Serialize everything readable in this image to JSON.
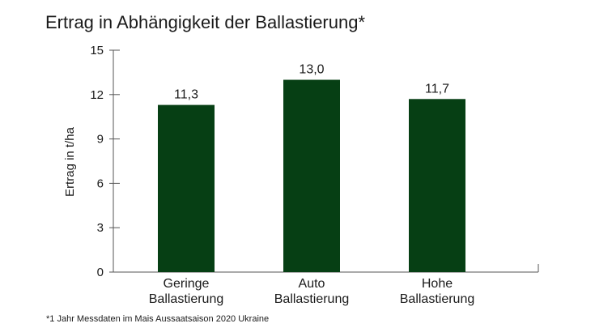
{
  "chart_data": {
    "type": "bar",
    "title": "Ertrag in Abhängigkeit der Ballastierung*",
    "ylabel": "Ertrag in t/ha",
    "xlabel": "",
    "ylim": [
      0,
      15
    ],
    "yticks": [
      "0",
      "3",
      "6",
      "9",
      "12",
      "15"
    ],
    "ytick_values": [
      0,
      3,
      6,
      9,
      12,
      15
    ],
    "grid": false,
    "categories": [
      [
        "Geringe",
        "Ballastierung"
      ],
      [
        "Auto",
        "Ballastierung"
      ],
      [
        "Hohe",
        "Ballastierung"
      ]
    ],
    "values": [
      11.3,
      13.0,
      11.7
    ],
    "value_labels": [
      "11,3",
      "13,0",
      "11,7"
    ],
    "bar_color": "#063f14",
    "footnote": "*1 Jahr Messdaten im Mais Aussaatsaison 2020 Ukraine"
  }
}
